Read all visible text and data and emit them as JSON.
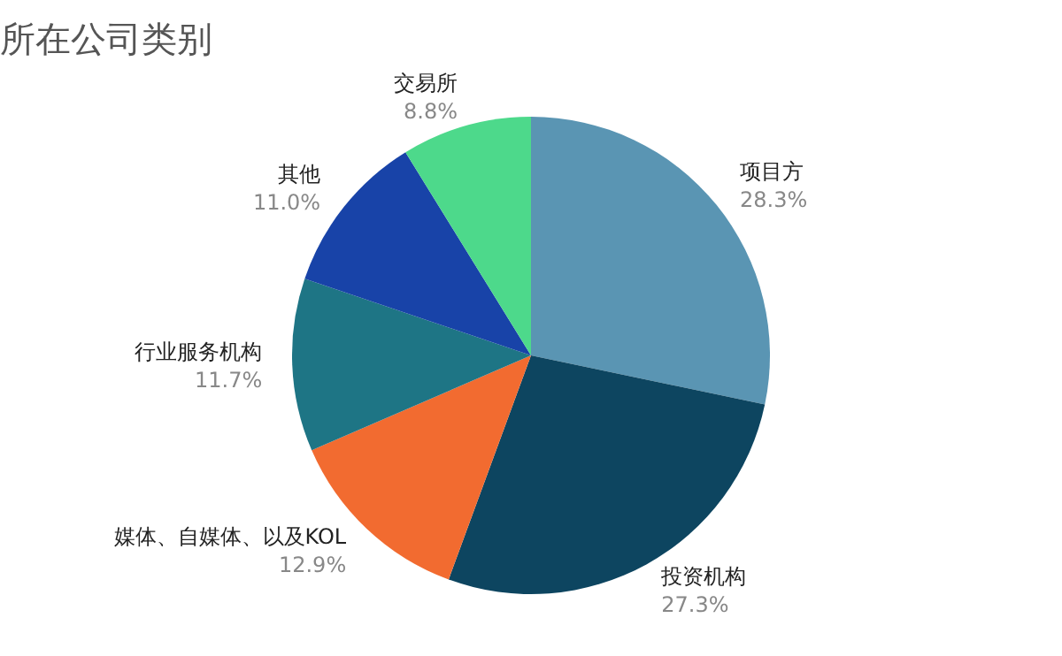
{
  "chart_data": {
    "type": "pie",
    "title": "所在公司类别",
    "categories": [
      "项目方",
      "投资机构",
      "媒体、自媒体、以及KOL",
      "行业服务机构",
      "其他",
      "交易所"
    ],
    "values": [
      28.3,
      27.3,
      12.9,
      11.7,
      11.0,
      8.8
    ],
    "colors": [
      "#5a95b3",
      "#0d4560",
      "#f26b30",
      "#1e7585",
      "#1843a8",
      "#4dd98b"
    ],
    "value_labels": [
      "28.3%",
      "27.3%",
      "12.9%",
      "11.7%",
      "11.0%",
      "8.8%"
    ],
    "legend": false
  }
}
